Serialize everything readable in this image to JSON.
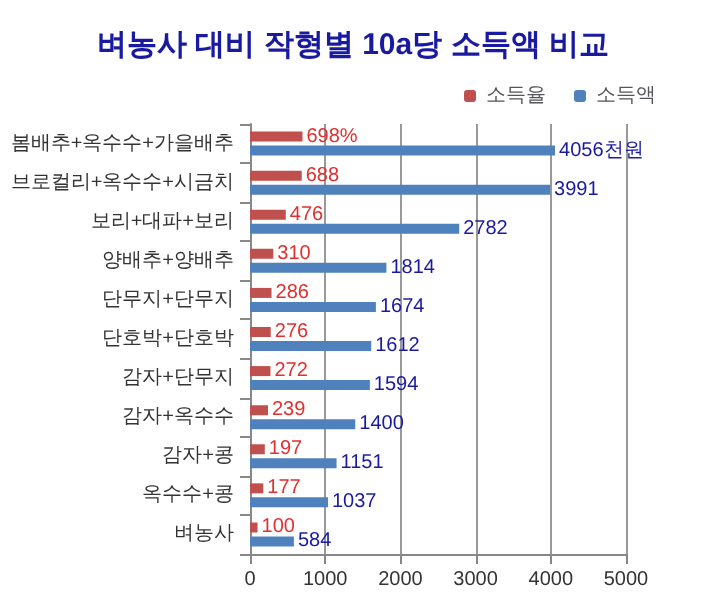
{
  "chart_data": {
    "type": "bar",
    "orientation": "horizontal",
    "title": "벼농사 대비 작형별 10a당 소득액 비교",
    "categories": [
      "봄배추+옥수수+가을배추",
      "브로컬리+옥수수+시금치",
      "보리+대파+보리",
      "양배추+양배추",
      "단무지+단무지",
      "단호박+단호박",
      "감자+단무지",
      "감자+옥수수",
      "감자+콩",
      "옥수수+콩",
      "벼농사"
    ],
    "series": [
      {
        "name": "소득율",
        "color": "#c0504d",
        "values": [
          698,
          688,
          476,
          310,
          286,
          276,
          272,
          239,
          197,
          177,
          100
        ],
        "value_labels": [
          "698%",
          "688",
          "476",
          "310",
          "286",
          "276",
          "272",
          "239",
          "197",
          "177",
          "100"
        ]
      },
      {
        "name": "소득액",
        "color": "#4f81bd",
        "values": [
          4056,
          3991,
          2782,
          1814,
          1674,
          1612,
          1594,
          1400,
          1151,
          1037,
          584
        ],
        "value_labels": [
          "4056천원",
          "3991",
          "2782",
          "1814",
          "1674",
          "1612",
          "1594",
          "1400",
          "1151",
          "1037",
          "584"
        ]
      }
    ],
    "xlim": [
      0,
      5000
    ],
    "xticks": [
      0,
      1000,
      2000,
      3000,
      4000,
      5000
    ],
    "grid": "x",
    "legend": "top right"
  }
}
